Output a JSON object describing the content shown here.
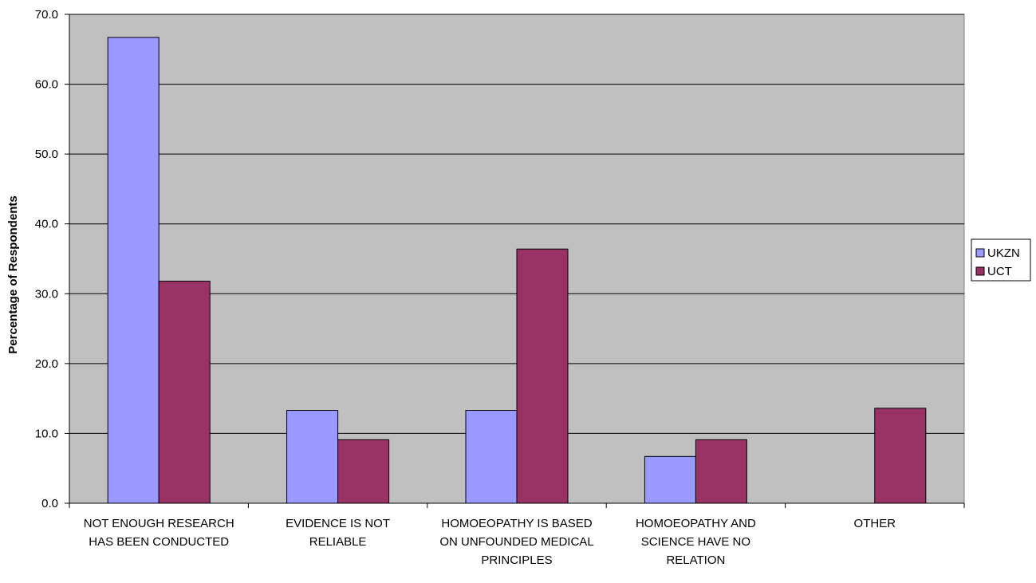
{
  "chart_data": {
    "type": "bar",
    "title": "",
    "xlabel": "",
    "ylabel": "Percentage of Respondents",
    "ylim": [
      0,
      70
    ],
    "yticks": [
      "0.0",
      "10.0",
      "20.0",
      "30.0",
      "40.0",
      "50.0",
      "60.0",
      "70.0"
    ],
    "grid": true,
    "legend_position": "right",
    "categories": [
      [
        "NOT ENOUGH RESEARCH",
        "HAS BEEN CONDUCTED"
      ],
      [
        "EVIDENCE IS NOT",
        "RELIABLE"
      ],
      [
        "HOMOEOPATHY IS BASED",
        "ON UNFOUNDED MEDICAL",
        "PRINCIPLES"
      ],
      [
        "HOMOEOPATHY AND",
        "SCIENCE HAVE NO",
        "RELATION"
      ],
      [
        "OTHER"
      ]
    ],
    "series": [
      {
        "name": "UKZN",
        "color": "#9999ff",
        "values": [
          66.7,
          13.3,
          13.3,
          6.7,
          0.0
        ]
      },
      {
        "name": "UCT",
        "color": "#993366",
        "values": [
          31.8,
          9.1,
          36.4,
          9.1,
          13.6
        ]
      }
    ],
    "plot_background": "#c0c0c0"
  }
}
